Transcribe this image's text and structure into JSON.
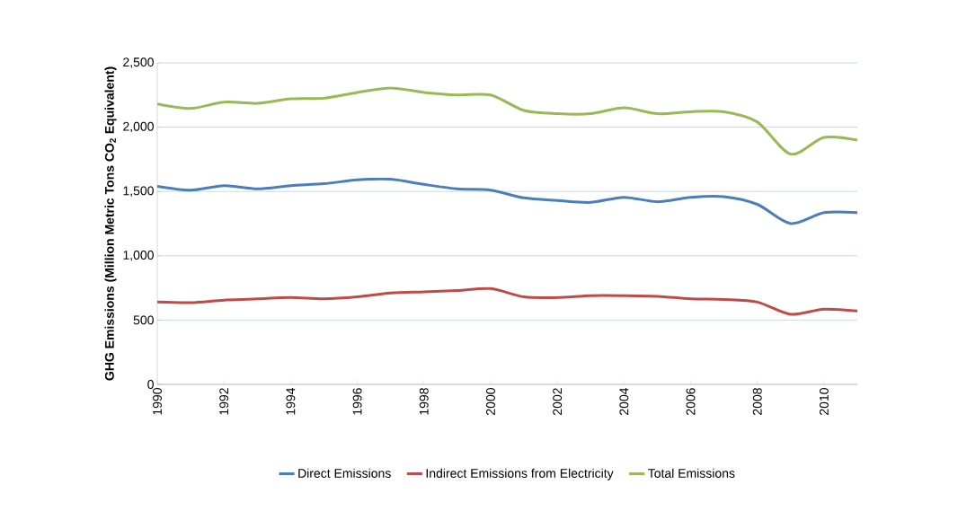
{
  "chart_data": {
    "type": "line",
    "ylabel": "GHG Emissions (Million Metric Tons CO$_{2}$ Equivalent)",
    "x": [
      1990,
      1991,
      1992,
      1993,
      1994,
      1995,
      1996,
      1997,
      1998,
      1999,
      2000,
      2001,
      2002,
      2003,
      2004,
      2005,
      2006,
      2007,
      2008,
      2009,
      2010,
      2011
    ],
    "series": [
      {
        "name": "Direct Emissions",
        "color": "#4a7ebb",
        "values": [
          1540,
          1510,
          1545,
          1520,
          1545,
          1560,
          1590,
          1595,
          1555,
          1520,
          1510,
          1450,
          1430,
          1415,
          1455,
          1420,
          1455,
          1460,
          1400,
          1250,
          1335,
          1335
        ]
      },
      {
        "name": "Indirect Emissions from Electricity",
        "color": "#be4b48",
        "values": [
          640,
          635,
          655,
          665,
          675,
          665,
          680,
          710,
          720,
          730,
          745,
          680,
          675,
          690,
          690,
          685,
          665,
          660,
          640,
          545,
          585,
          570
        ]
      },
      {
        "name": "Total Emissions",
        "color": "#98b954",
        "values": [
          2180,
          2145,
          2195,
          2185,
          2220,
          2225,
          2270,
          2305,
          2270,
          2250,
          2250,
          2130,
          2105,
          2105,
          2150,
          2105,
          2120,
          2120,
          2040,
          1790,
          1920,
          1900
        ]
      }
    ],
    "xlim": [
      1990,
      2011
    ],
    "xticks": [
      1990,
      1992,
      1994,
      1996,
      1998,
      2000,
      2002,
      2004,
      2006,
      2008,
      2010
    ],
    "ylim": [
      0,
      2500
    ],
    "yticks": [
      {
        "value": 0,
        "label": "0"
      },
      {
        "value": 500,
        "label": "500"
      },
      {
        "value": 1000,
        "label": "1,000"
      },
      {
        "value": 1500,
        "label": "1,500"
      },
      {
        "value": 2000,
        "label": "2,000"
      },
      {
        "value": 2500,
        "label": "2,500"
      }
    ],
    "grid": "y",
    "legend": "bottom",
    "marker": "none",
    "line_style": "solid"
  }
}
